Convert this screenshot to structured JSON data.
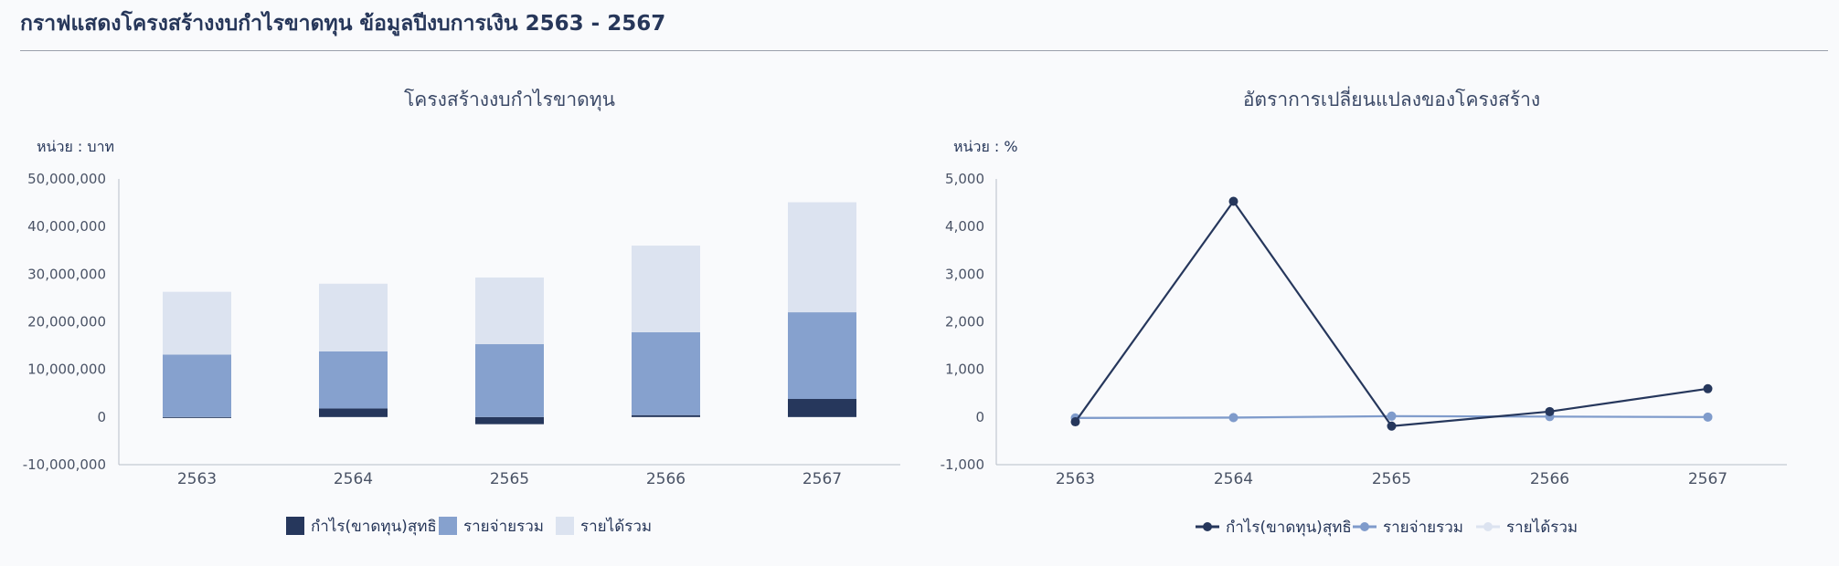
{
  "page": {
    "title": "กราฟแสดงโครงสร้างงบกำไรขาดทุน ข้อมูลปีงบการเงิน 2563 - 2567"
  },
  "colors": {
    "profit": "#26375c",
    "expense": "#86a1ce",
    "revenue": "#dce3f0"
  },
  "chart_data": [
    {
      "type": "bar",
      "stacked": true,
      "title": "โครงสร้างงบกำไรขาดทุน",
      "unit_label": "หน่วย : บาท",
      "categories": [
        "2563",
        "2564",
        "2565",
        "2566",
        "2567"
      ],
      "series": [
        {
          "name": "กำไร(ขาดทุน)สุทธิ",
          "values": [
            -100000,
            1800000,
            -1500000,
            400000,
            3800000
          ]
        },
        {
          "name": "รายจ่ายรวม",
          "values": [
            13100000,
            12000000,
            15300000,
            17400000,
            18200000
          ]
        },
        {
          "name": "รายได้รวม",
          "values": [
            13200000,
            14200000,
            14000000,
            18200000,
            23100000
          ]
        }
      ],
      "ylim": [
        -10000000,
        50000000
      ],
      "yticks": [
        -10000000,
        0,
        10000000,
        20000000,
        30000000,
        40000000,
        50000000
      ],
      "ytick_labels": [
        "-10,000,000",
        "0",
        "10,000,000",
        "20,000,000",
        "30,000,000",
        "40,000,000",
        "50,000,000"
      ],
      "legend_position": "bottom",
      "grid": false
    },
    {
      "type": "line",
      "title": "อัตราการเปลี่ยนแปลงของโครงสร้าง",
      "unit_label": "หน่วย : %",
      "categories": [
        "2563",
        "2564",
        "2565",
        "2566",
        "2567"
      ],
      "series": [
        {
          "name": "กำไร(ขาดทุน)สุทธิ",
          "values": [
            -100,
            4530,
            -190,
            115,
            595
          ]
        },
        {
          "name": "รายจ่ายรวม",
          "values": [
            -20,
            -10,
            20,
            10,
            0
          ]
        },
        {
          "name": "รายได้รวม",
          "values": [
            -10,
            -20,
            10,
            5,
            -5
          ]
        }
      ],
      "ylim": [
        -1000,
        5000
      ],
      "yticks": [
        -1000,
        0,
        1000,
        2000,
        3000,
        4000,
        5000
      ],
      "ytick_labels": [
        "-1,000",
        "0",
        "1,000",
        "2,000",
        "3,000",
        "4,000",
        "5,000"
      ],
      "legend_position": "bottom",
      "grid": false
    }
  ]
}
